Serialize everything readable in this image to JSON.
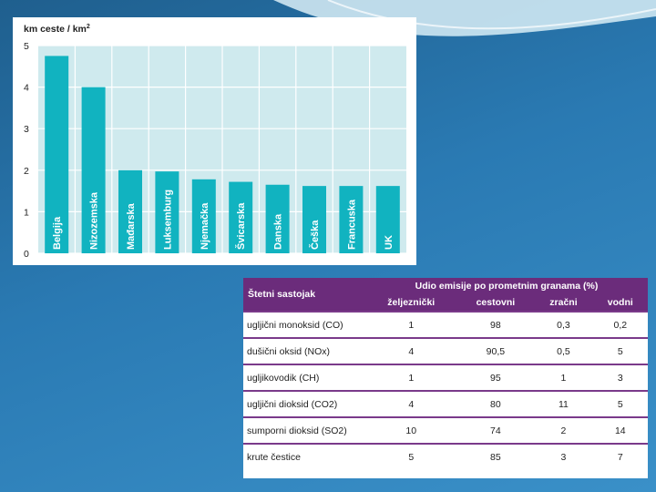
{
  "chart_data": {
    "type": "bar",
    "title": "km ceste / km²",
    "title_base": "km ceste / km",
    "title_sup": "2",
    "categories": [
      "Belgija",
      "Nizozemska",
      "Mađarska",
      "Luksemburg",
      "Njemačka",
      "Švicarska",
      "Danska",
      "Češka",
      "Francuska",
      "UK"
    ],
    "values": [
      4.75,
      4.0,
      2.0,
      1.97,
      1.78,
      1.72,
      1.65,
      1.62,
      1.62,
      1.62
    ],
    "ylim": [
      0,
      5
    ],
    "yticks": [
      0,
      1,
      2,
      3,
      4,
      5
    ],
    "xlabel": "",
    "ylabel": "km ceste / km²",
    "colors": {
      "bar": "#11b3c0",
      "plot_bg": "#cfeaee",
      "grid": "#ffffff"
    }
  },
  "table": {
    "component_header": "Štetni sastojak",
    "group_header": "Udio emisije po prometnim granama (%)",
    "columns": [
      "željeznički",
      "cestovni",
      "zračni",
      "vodni"
    ],
    "rows": [
      {
        "name": "ugljični monoksid (CO)",
        "values": [
          "1",
          "98",
          "0,3",
          "0,2"
        ]
      },
      {
        "name": "dušični oksid (NOx)",
        "values": [
          "4",
          "90,5",
          "0,5",
          "5"
        ]
      },
      {
        "name": "ugljikovodik (CH)",
        "values": [
          "1",
          "95",
          "1",
          "3"
        ]
      },
      {
        "name": "ugljični dioksid (CO2)",
        "values": [
          "4",
          "80",
          "11",
          "5"
        ]
      },
      {
        "name": "sumporni dioksid (SO2)",
        "values": [
          "10",
          "74",
          "2",
          "14"
        ]
      },
      {
        "name": "krute čestice",
        "values": [
          "5",
          "85",
          "3",
          "7"
        ]
      }
    ],
    "colors": {
      "header_bg": "#6b2c7b",
      "row_rule": "#7a3a8a"
    }
  }
}
